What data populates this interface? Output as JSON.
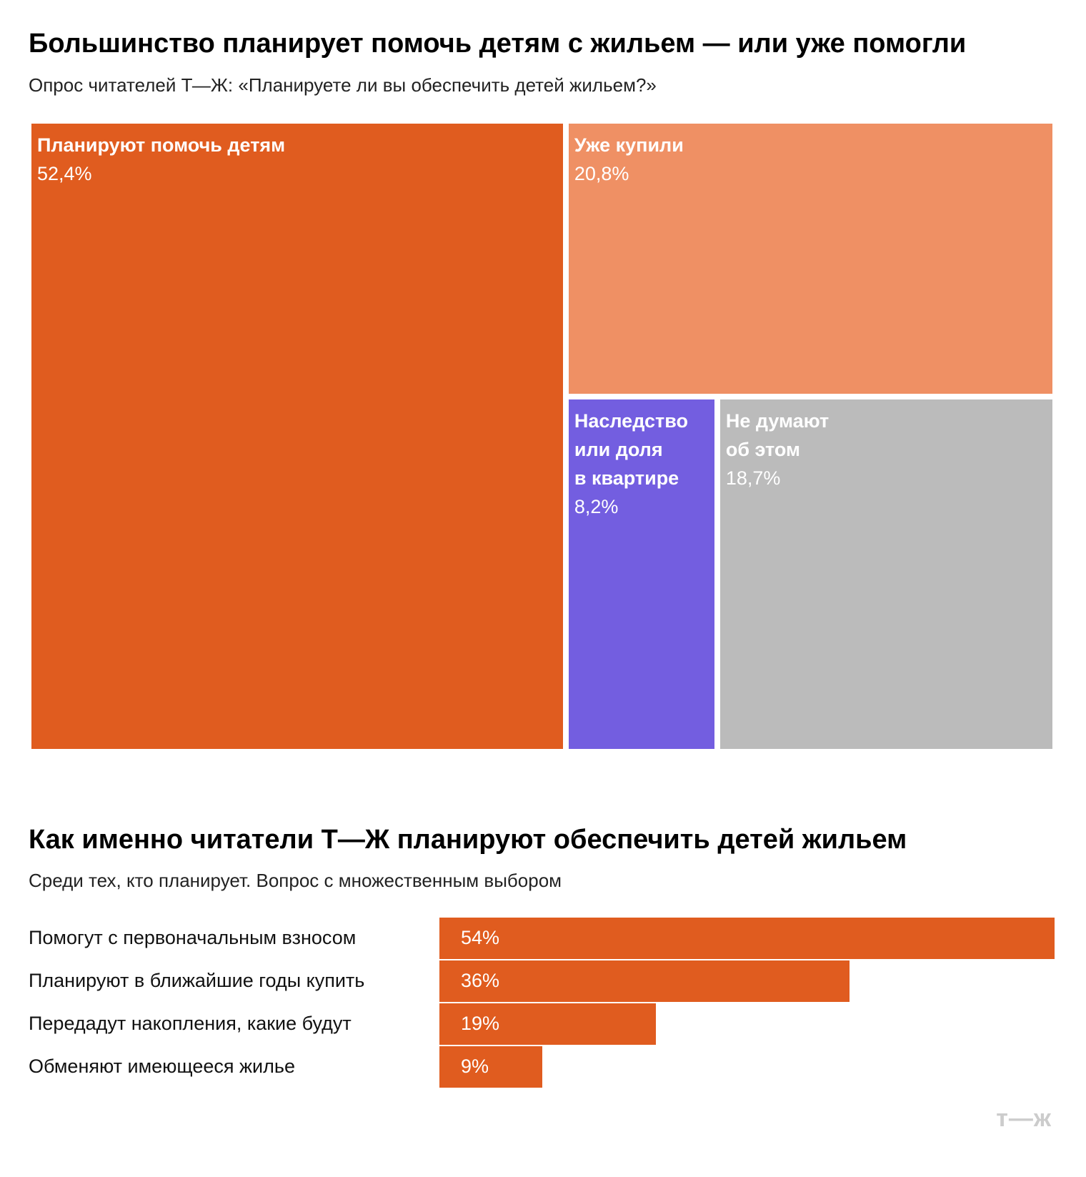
{
  "chart_data": [
    {
      "type": "treemap",
      "title": "Большинство планирует помочь детям с жильем — или уже помогли",
      "subtitle": "Опрос читателей Т—Ж: «Планируете ли вы обеспечить детей жильем?»",
      "categories": [
        "Планируют помочь детям",
        "Уже купили",
        "Наследство\nили доля\nв квартире",
        "Не думают\nоб этом"
      ],
      "values": [
        52.4,
        20.8,
        8.2,
        18.7
      ],
      "value_labels": [
        "52,4%",
        "20,8%",
        "8,2%",
        "18,7%"
      ],
      "colors": [
        "#e05c1f",
        "#ef9064",
        "#735ee0",
        "#bbbbbb"
      ]
    },
    {
      "type": "bar",
      "orientation": "horizontal",
      "title": "Как именно читатели Т—Ж планируют обеспечить детей жильем",
      "subtitle": "Среди тех, кто планирует. Вопрос с множественным выбором",
      "categories": [
        "Помогут с первоначальным взносом",
        "Планируют в ближайшие годы купить",
        "Передадут накопления, какие будут",
        "Обменяют имеющееся жилье"
      ],
      "values": [
        54,
        36,
        19,
        9
      ],
      "value_labels": [
        "54%",
        "36%",
        "19%",
        "9%"
      ],
      "color": "#e05c1f"
    }
  ],
  "logo": "т—ж"
}
